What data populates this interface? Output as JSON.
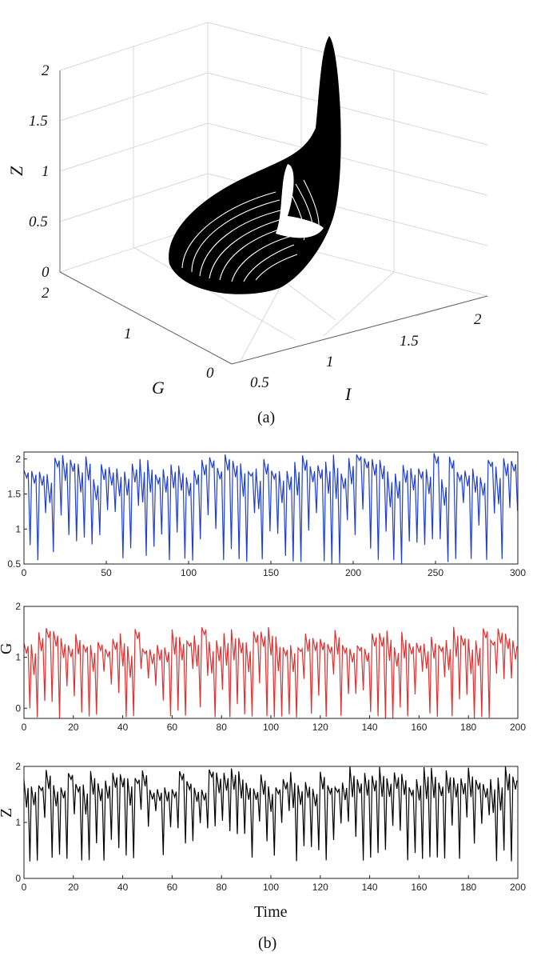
{
  "chart_data": [
    {
      "panel": "a",
      "caption": "(a)",
      "type": "scatter",
      "subtype": "3d-attractor",
      "xlabel": "I",
      "ylabel": "G",
      "zlabel": "Z",
      "x_ticks": [
        "0.5",
        "1",
        "1.5",
        "2"
      ],
      "y_ticks": [
        "0",
        "1",
        "2"
      ],
      "z_ticks": [
        "0",
        "0.5",
        "1",
        "1.5",
        "2"
      ],
      "xlim": [
        0.5,
        2
      ],
      "ylim": [
        0,
        2
      ],
      "zlim": [
        0,
        2
      ],
      "grid": true,
      "color": "#000000"
    },
    {
      "panel": "b1",
      "type": "line",
      "ylabel": "",
      "xlim": [
        0,
        300
      ],
      "ylim": [
        0.5,
        2.1
      ],
      "x_ticks": [
        "0",
        "50",
        "100",
        "150",
        "200",
        "250",
        "300"
      ],
      "y_ticks": [
        "0.5",
        "1",
        "1.5",
        "2"
      ],
      "series": [
        {
          "color": "#1f3fd0",
          "min": 0.5,
          "max": 2.1,
          "period": 4.7
        }
      ]
    },
    {
      "panel": "b2",
      "type": "line",
      "ylabel": "G",
      "xlim": [
        0,
        200
      ],
      "ylim": [
        -0.2,
        2
      ],
      "x_ticks": [
        "0",
        "20",
        "40",
        "60",
        "80",
        "100",
        "120",
        "140",
        "160",
        "180",
        "200"
      ],
      "y_ticks": [
        "0",
        "1",
        "2"
      ],
      "series": [
        {
          "color": "#e03030",
          "min": -0.2,
          "max": 1.6,
          "period": 3.0
        }
      ]
    },
    {
      "panel": "b3",
      "caption": "(b)",
      "type": "line",
      "xlabel": "Time",
      "ylabel": "Z",
      "xlim": [
        0,
        200
      ],
      "ylim": [
        0,
        2
      ],
      "x_ticks": [
        "0",
        "20",
        "40",
        "60",
        "80",
        "100",
        "120",
        "140",
        "160",
        "180",
        "200"
      ],
      "y_ticks": [
        "0",
        "1",
        "2"
      ],
      "series": [
        {
          "color": "#000000",
          "min": 0.3,
          "max": 2.0,
          "period": 3.0
        }
      ]
    }
  ]
}
